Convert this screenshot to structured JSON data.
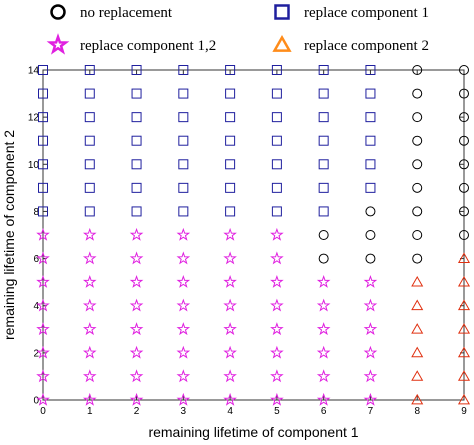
{
  "chart_data": {
    "type": "scatter",
    "xlabel": "remaining lifetime of component 1",
    "ylabel": "remaining lifetime of component 2",
    "xlim": [
      0,
      9
    ],
    "ylim": [
      0,
      14
    ],
    "x_ticks": [
      0,
      1,
      2,
      3,
      4,
      5,
      6,
      7,
      8,
      9
    ],
    "y_ticks": [
      0,
      2,
      4,
      6,
      8,
      10,
      12,
      14
    ],
    "grid": false,
    "legend_position": "top",
    "series": [
      {
        "name": "no replacement",
        "marker": "circle",
        "color": "#000000",
        "points": [
          [
            6,
            6
          ],
          [
            6,
            7
          ],
          [
            7,
            6
          ],
          [
            7,
            7
          ],
          [
            7,
            8
          ],
          [
            8,
            6
          ],
          [
            8,
            7
          ],
          [
            8,
            8
          ],
          [
            8,
            9
          ],
          [
            8,
            10
          ],
          [
            8,
            11
          ],
          [
            8,
            12
          ],
          [
            8,
            13
          ],
          [
            8,
            14
          ],
          [
            9,
            7
          ],
          [
            9,
            8
          ],
          [
            9,
            9
          ],
          [
            9,
            10
          ],
          [
            9,
            11
          ],
          [
            9,
            12
          ],
          [
            9,
            13
          ],
          [
            9,
            14
          ]
        ]
      },
      {
        "name": "replace component 1",
        "marker": "square",
        "color": "#1f1f9e",
        "points": [
          [
            0,
            8
          ],
          [
            0,
            9
          ],
          [
            0,
            10
          ],
          [
            0,
            11
          ],
          [
            0,
            12
          ],
          [
            0,
            13
          ],
          [
            0,
            14
          ],
          [
            1,
            8
          ],
          [
            1,
            9
          ],
          [
            1,
            10
          ],
          [
            1,
            11
          ],
          [
            1,
            12
          ],
          [
            1,
            13
          ],
          [
            1,
            14
          ],
          [
            2,
            8
          ],
          [
            2,
            9
          ],
          [
            2,
            10
          ],
          [
            2,
            11
          ],
          [
            2,
            12
          ],
          [
            2,
            13
          ],
          [
            2,
            14
          ],
          [
            3,
            8
          ],
          [
            3,
            9
          ],
          [
            3,
            10
          ],
          [
            3,
            11
          ],
          [
            3,
            12
          ],
          [
            3,
            13
          ],
          [
            3,
            14
          ],
          [
            4,
            8
          ],
          [
            4,
            9
          ],
          [
            4,
            10
          ],
          [
            4,
            11
          ],
          [
            4,
            12
          ],
          [
            4,
            13
          ],
          [
            4,
            14
          ],
          [
            5,
            8
          ],
          [
            5,
            9
          ],
          [
            5,
            10
          ],
          [
            5,
            11
          ],
          [
            5,
            12
          ],
          [
            5,
            13
          ],
          [
            5,
            14
          ],
          [
            6,
            8
          ],
          [
            6,
            9
          ],
          [
            6,
            10
          ],
          [
            6,
            11
          ],
          [
            6,
            12
          ],
          [
            6,
            13
          ],
          [
            6,
            14
          ],
          [
            7,
            9
          ],
          [
            7,
            10
          ],
          [
            7,
            11
          ],
          [
            7,
            12
          ],
          [
            7,
            13
          ],
          [
            7,
            14
          ]
        ]
      },
      {
        "name": "replace component 1,2",
        "marker": "star",
        "color": "#e020e0",
        "points": [
          [
            0,
            0
          ],
          [
            0,
            1
          ],
          [
            0,
            2
          ],
          [
            0,
            3
          ],
          [
            0,
            4
          ],
          [
            0,
            5
          ],
          [
            0,
            6
          ],
          [
            0,
            7
          ],
          [
            1,
            0
          ],
          [
            1,
            1
          ],
          [
            1,
            2
          ],
          [
            1,
            3
          ],
          [
            1,
            4
          ],
          [
            1,
            5
          ],
          [
            1,
            6
          ],
          [
            1,
            7
          ],
          [
            2,
            0
          ],
          [
            2,
            1
          ],
          [
            2,
            2
          ],
          [
            2,
            3
          ],
          [
            2,
            4
          ],
          [
            2,
            5
          ],
          [
            2,
            6
          ],
          [
            2,
            7
          ],
          [
            3,
            0
          ],
          [
            3,
            1
          ],
          [
            3,
            2
          ],
          [
            3,
            3
          ],
          [
            3,
            4
          ],
          [
            3,
            5
          ],
          [
            3,
            6
          ],
          [
            3,
            7
          ],
          [
            4,
            0
          ],
          [
            4,
            1
          ],
          [
            4,
            2
          ],
          [
            4,
            3
          ],
          [
            4,
            4
          ],
          [
            4,
            5
          ],
          [
            4,
            6
          ],
          [
            4,
            7
          ],
          [
            5,
            0
          ],
          [
            5,
            1
          ],
          [
            5,
            2
          ],
          [
            5,
            3
          ],
          [
            5,
            4
          ],
          [
            5,
            5
          ],
          [
            5,
            6
          ],
          [
            5,
            7
          ],
          [
            6,
            0
          ],
          [
            6,
            1
          ],
          [
            6,
            2
          ],
          [
            6,
            3
          ],
          [
            6,
            4
          ],
          [
            6,
            5
          ],
          [
            7,
            0
          ],
          [
            7,
            1
          ],
          [
            7,
            2
          ],
          [
            7,
            3
          ],
          [
            7,
            4
          ],
          [
            7,
            5
          ]
        ]
      },
      {
        "name": "replace component 2",
        "marker": "triangle",
        "color": "#e03010",
        "legend_color": "#ff8c1a",
        "points": [
          [
            8,
            0
          ],
          [
            8,
            1
          ],
          [
            8,
            2
          ],
          [
            8,
            3
          ],
          [
            8,
            4
          ],
          [
            8,
            5
          ],
          [
            9,
            0
          ],
          [
            9,
            1
          ],
          [
            9,
            2
          ],
          [
            9,
            3
          ],
          [
            9,
            4
          ],
          [
            9,
            5
          ],
          [
            9,
            6
          ]
        ]
      }
    ]
  }
}
